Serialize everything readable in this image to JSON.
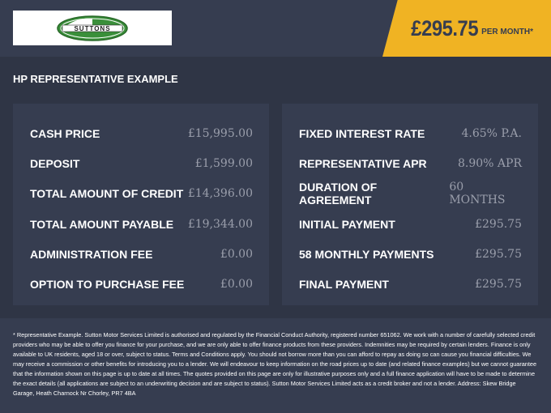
{
  "header": {
    "logo_text": "SUTTONS",
    "price": "£295.75",
    "price_suffix": "PER MONTH*",
    "brand_colors": {
      "accent": "#f0b323",
      "logo_green": "#3a8f3a"
    }
  },
  "section_title": "HP REPRESENTATIVE EXAMPLE",
  "left_panel": [
    {
      "label": "CASH PRICE",
      "value": "£15,995.00"
    },
    {
      "label": "DEPOSIT",
      "value": "£1,599.00"
    },
    {
      "label": "TOTAL AMOUNT OF CREDIT",
      "value": "£14,396.00"
    },
    {
      "label": "TOTAL AMOUNT PAYABLE",
      "value": "£19,344.00"
    },
    {
      "label": "ADMINISTRATION FEE",
      "value": "£0.00"
    },
    {
      "label": "OPTION TO PURCHASE FEE",
      "value": "£0.00"
    }
  ],
  "right_panel": [
    {
      "label": "FIXED INTEREST RATE",
      "value": "4.65% P.A."
    },
    {
      "label": "REPRESENTATIVE APR",
      "value": "8.90% APR"
    },
    {
      "label": "DURATION OF AGREEMENT",
      "value": "60 MONTHS"
    },
    {
      "label": "INITIAL PAYMENT",
      "value": "£295.75"
    },
    {
      "label": "58 MONTHLY PAYMENTS",
      "value": "£295.75"
    },
    {
      "label": "FINAL PAYMENT",
      "value": "£295.75"
    }
  ],
  "disclaimer": "* Representative Example. Sutton Motor Services Limited is authorised and regulated by the Financial Conduct Authority, registered number 651062. We work with a number of carefully selected credit providers who may be able to offer you finance for your purchase, and we are only able to offer finance products from these providers. Indemnities may be required by certain lenders. Finance is only available to UK residents, aged 18 or over, subject to status. Terms and Conditions apply. You should not borrow more than you can afford to repay as doing so can cause you financial difficulties. We may receive a commission or other benefits for introducing you to a lender. We will endeavour to keep information on the road prices up to date (and related finance examples) but we cannot guarantee that the information shown on this page is up to date at all times. The quotes provided on this page are only for illustrative purposes only and a full finance application will have to be made to determine the exact details (all applications are subject to an underwriting decision and are subject to status). Sutton Motor Services Limited acts as a credit broker and not a lender. Address: Skew Bridge Garage, Heath Charnock Nr Chorley, PR7 4BA"
}
